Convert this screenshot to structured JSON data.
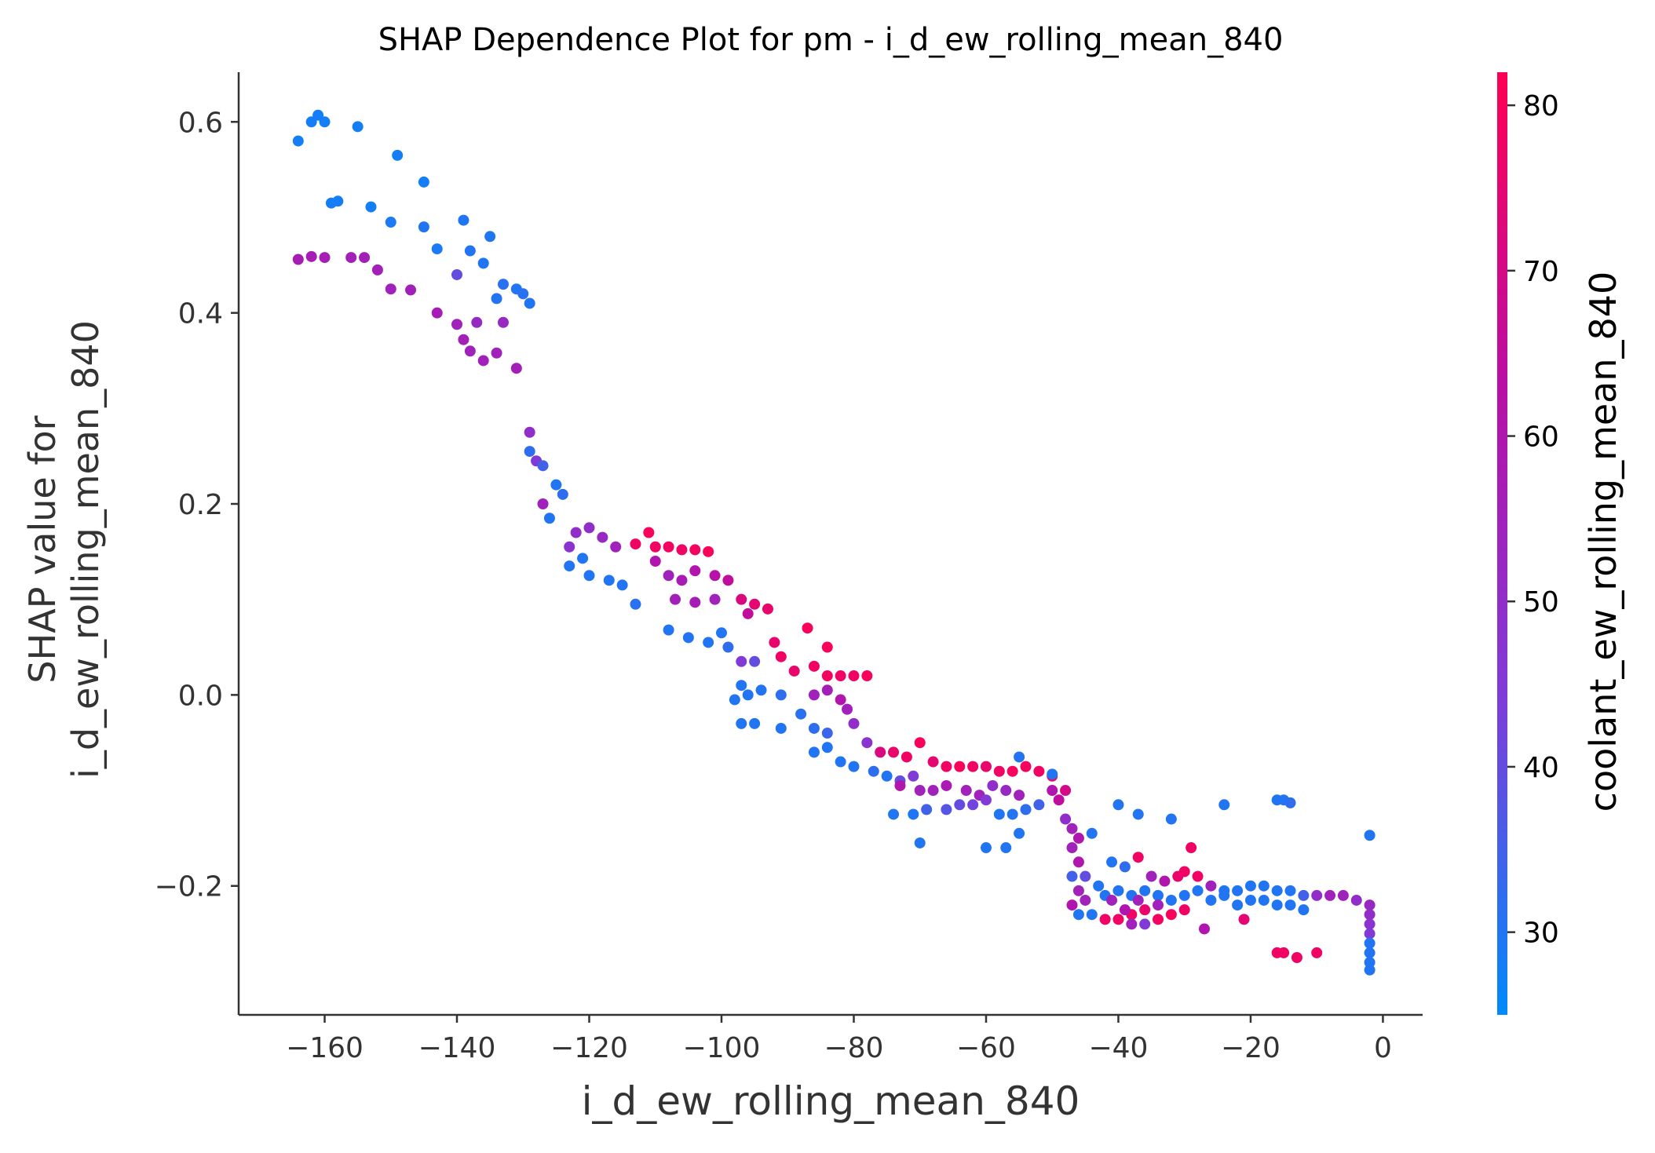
{
  "chart_data": {
    "type": "scatter",
    "title": "SHAP Dependence Plot for pm - i_d_ew_rolling_mean_840",
    "xlabel": "i_d_ew_rolling_mean_840",
    "ylabel_lines": [
      "SHAP value for",
      "i_d_ew_rolling_mean_840"
    ],
    "xlim": [
      -173,
      6
    ],
    "ylim": [
      -0.335,
      0.652
    ],
    "x_ticks": [
      -160,
      -140,
      -120,
      -100,
      -80,
      -60,
      -40,
      -20,
      0
    ],
    "x_tick_labels": [
      "−160",
      "−140",
      "−120",
      "−100",
      "−80",
      "−60",
      "−40",
      "−20",
      "0"
    ],
    "y_ticks": [
      -0.2,
      0.0,
      0.2,
      0.4,
      0.6
    ],
    "y_tick_labels": [
      "−0.2",
      "0.0",
      "0.2",
      "0.4",
      "0.6"
    ],
    "grid": false,
    "colorbar": {
      "label": "coolant_ew_rolling_mean_840",
      "range": [
        25,
        82
      ],
      "ticks": [
        30,
        40,
        50,
        60,
        70,
        80
      ],
      "tick_labels": [
        "30",
        "40",
        "50",
        "60",
        "70",
        "80"
      ],
      "colors": [
        "#008afb",
        "#7e3cd9",
        "#b90fa5",
        "#ff0052"
      ]
    },
    "point_color_key": "c",
    "points": [
      {
        "x": -164,
        "y": 0.58,
        "c": 28
      },
      {
        "x": -162,
        "y": 0.6,
        "c": 28
      },
      {
        "x": -161,
        "y": 0.607,
        "c": 28
      },
      {
        "x": -160,
        "y": 0.6,
        "c": 28
      },
      {
        "x": -155,
        "y": 0.595,
        "c": 28
      },
      {
        "x": -149,
        "y": 0.565,
        "c": 28
      },
      {
        "x": -145,
        "y": 0.537,
        "c": 28
      },
      {
        "x": -159,
        "y": 0.515,
        "c": 28
      },
      {
        "x": -158,
        "y": 0.517,
        "c": 28
      },
      {
        "x": -153,
        "y": 0.511,
        "c": 28
      },
      {
        "x": -150,
        "y": 0.495,
        "c": 29
      },
      {
        "x": -145,
        "y": 0.49,
        "c": 30
      },
      {
        "x": -143,
        "y": 0.467,
        "c": 29
      },
      {
        "x": -139,
        "y": 0.497,
        "c": 30
      },
      {
        "x": -135,
        "y": 0.48,
        "c": 30
      },
      {
        "x": -138,
        "y": 0.465,
        "c": 30
      },
      {
        "x": -136,
        "y": 0.452,
        "c": 30
      },
      {
        "x": -133,
        "y": 0.43,
        "c": 31
      },
      {
        "x": -131,
        "y": 0.425,
        "c": 30
      },
      {
        "x": -130,
        "y": 0.42,
        "c": 31
      },
      {
        "x": -129,
        "y": 0.41,
        "c": 30
      },
      {
        "x": -134,
        "y": 0.415,
        "c": 30
      },
      {
        "x": -140,
        "y": 0.44,
        "c": 40
      },
      {
        "x": -164,
        "y": 0.456,
        "c": 57
      },
      {
        "x": -162,
        "y": 0.459,
        "c": 57
      },
      {
        "x": -160,
        "y": 0.458,
        "c": 57
      },
      {
        "x": -156,
        "y": 0.458,
        "c": 56
      },
      {
        "x": -154,
        "y": 0.458,
        "c": 56
      },
      {
        "x": -152,
        "y": 0.445,
        "c": 56
      },
      {
        "x": -150,
        "y": 0.425,
        "c": 55
      },
      {
        "x": -147,
        "y": 0.424,
        "c": 56
      },
      {
        "x": -143,
        "y": 0.4,
        "c": 57
      },
      {
        "x": -140,
        "y": 0.388,
        "c": 55
      },
      {
        "x": -139,
        "y": 0.372,
        "c": 56
      },
      {
        "x": -137,
        "y": 0.39,
        "c": 52
      },
      {
        "x": -136,
        "y": 0.35,
        "c": 55
      },
      {
        "x": -134,
        "y": 0.358,
        "c": 55
      },
      {
        "x": -131,
        "y": 0.342,
        "c": 56
      },
      {
        "x": -133,
        "y": 0.39,
        "c": 52
      },
      {
        "x": -138,
        "y": 0.36,
        "c": 55
      },
      {
        "x": -129,
        "y": 0.275,
        "c": 50
      },
      {
        "x": -128,
        "y": 0.245,
        "c": 45
      },
      {
        "x": -129,
        "y": 0.255,
        "c": 32
      },
      {
        "x": -127,
        "y": 0.24,
        "c": 35
      },
      {
        "x": -125,
        "y": 0.22,
        "c": 30
      },
      {
        "x": -124,
        "y": 0.21,
        "c": 32
      },
      {
        "x": -126,
        "y": 0.185,
        "c": 30
      },
      {
        "x": -127,
        "y": 0.2,
        "c": 55
      },
      {
        "x": -123,
        "y": 0.155,
        "c": 48
      },
      {
        "x": -122,
        "y": 0.17,
        "c": 50
      },
      {
        "x": -120,
        "y": 0.175,
        "c": 50
      },
      {
        "x": -118,
        "y": 0.165,
        "c": 52
      },
      {
        "x": -116,
        "y": 0.155,
        "c": 55
      },
      {
        "x": -123,
        "y": 0.135,
        "c": 30
      },
      {
        "x": -121,
        "y": 0.143,
        "c": 30
      },
      {
        "x": -120,
        "y": 0.125,
        "c": 30
      },
      {
        "x": -117,
        "y": 0.12,
        "c": 30
      },
      {
        "x": -115,
        "y": 0.115,
        "c": 30
      },
      {
        "x": -113,
        "y": 0.095,
        "c": 31
      },
      {
        "x": -113,
        "y": 0.158,
        "c": 78
      },
      {
        "x": -111,
        "y": 0.17,
        "c": 80
      },
      {
        "x": -110,
        "y": 0.155,
        "c": 78
      },
      {
        "x": -108,
        "y": 0.155,
        "c": 79
      },
      {
        "x": -106,
        "y": 0.152,
        "c": 78
      },
      {
        "x": -104,
        "y": 0.152,
        "c": 79
      },
      {
        "x": -102,
        "y": 0.15,
        "c": 80
      },
      {
        "x": -110,
        "y": 0.14,
        "c": 60
      },
      {
        "x": -108,
        "y": 0.125,
        "c": 55
      },
      {
        "x": -106,
        "y": 0.12,
        "c": 58
      },
      {
        "x": -104,
        "y": 0.13,
        "c": 60
      },
      {
        "x": -101,
        "y": 0.125,
        "c": 62
      },
      {
        "x": -99,
        "y": 0.12,
        "c": 65
      },
      {
        "x": -107,
        "y": 0.1,
        "c": 56
      },
      {
        "x": -104,
        "y": 0.097,
        "c": 57
      },
      {
        "x": -101,
        "y": 0.1,
        "c": 55
      },
      {
        "x": -97,
        "y": 0.1,
        "c": 72
      },
      {
        "x": -95,
        "y": 0.095,
        "c": 75
      },
      {
        "x": -93,
        "y": 0.09,
        "c": 76
      },
      {
        "x": -96,
        "y": 0.085,
        "c": 65
      },
      {
        "x": -108,
        "y": 0.068,
        "c": 30
      },
      {
        "x": -105,
        "y": 0.06,
        "c": 30
      },
      {
        "x": -102,
        "y": 0.055,
        "c": 30
      },
      {
        "x": -100,
        "y": 0.065,
        "c": 30
      },
      {
        "x": -99,
        "y": 0.05,
        "c": 32
      },
      {
        "x": -97,
        "y": 0.035,
        "c": 45
      },
      {
        "x": -95,
        "y": 0.035,
        "c": 40
      },
      {
        "x": -92,
        "y": 0.055,
        "c": 76
      },
      {
        "x": -91,
        "y": 0.04,
        "c": 78
      },
      {
        "x": -89,
        "y": 0.025,
        "c": 76
      },
      {
        "x": -87,
        "y": 0.07,
        "c": 80
      },
      {
        "x": -84,
        "y": 0.05,
        "c": 80
      },
      {
        "x": -86,
        "y": 0.03,
        "c": 78
      },
      {
        "x": -84,
        "y": 0.02,
        "c": 79
      },
      {
        "x": -82,
        "y": 0.02,
        "c": 78
      },
      {
        "x": -80,
        "y": 0.02,
        "c": 78
      },
      {
        "x": -78,
        "y": 0.02,
        "c": 80
      },
      {
        "x": -97,
        "y": 0.01,
        "c": 30
      },
      {
        "x": -96,
        "y": 0.0,
        "c": 30
      },
      {
        "x": -94,
        "y": 0.005,
        "c": 30
      },
      {
        "x": -91,
        "y": 0.0,
        "c": 32
      },
      {
        "x": -98,
        "y": -0.005,
        "c": 30
      },
      {
        "x": -97,
        "y": -0.03,
        "c": 30
      },
      {
        "x": -95,
        "y": -0.03,
        "c": 30
      },
      {
        "x": -91,
        "y": -0.035,
        "c": 30
      },
      {
        "x": -88,
        "y": -0.02,
        "c": 31
      },
      {
        "x": -86,
        "y": -0.035,
        "c": 32
      },
      {
        "x": -84,
        "y": -0.04,
        "c": 34
      },
      {
        "x": -86,
        "y": 0.0,
        "c": 55
      },
      {
        "x": -84,
        "y": 0.005,
        "c": 56
      },
      {
        "x": -82,
        "y": -0.005,
        "c": 60
      },
      {
        "x": -81,
        "y": -0.015,
        "c": 55
      },
      {
        "x": -80,
        "y": -0.03,
        "c": 50
      },
      {
        "x": -78,
        "y": -0.05,
        "c": 48
      },
      {
        "x": -86,
        "y": -0.06,
        "c": 30
      },
      {
        "x": -84,
        "y": -0.055,
        "c": 30
      },
      {
        "x": -82,
        "y": -0.07,
        "c": 30
      },
      {
        "x": -80,
        "y": -0.075,
        "c": 30
      },
      {
        "x": -77,
        "y": -0.08,
        "c": 32
      },
      {
        "x": -75,
        "y": -0.085,
        "c": 30
      },
      {
        "x": -73,
        "y": -0.09,
        "c": 40
      },
      {
        "x": -71,
        "y": -0.085,
        "c": 45
      },
      {
        "x": -76,
        "y": -0.06,
        "c": 72
      },
      {
        "x": -74,
        "y": -0.06,
        "c": 76
      },
      {
        "x": -72,
        "y": -0.065,
        "c": 78
      },
      {
        "x": -70,
        "y": -0.05,
        "c": 80
      },
      {
        "x": -68,
        "y": -0.07,
        "c": 75
      },
      {
        "x": -66,
        "y": -0.075,
        "c": 78
      },
      {
        "x": -64,
        "y": -0.075,
        "c": 80
      },
      {
        "x": -62,
        "y": -0.075,
        "c": 78
      },
      {
        "x": -60,
        "y": -0.075,
        "c": 76
      },
      {
        "x": -58,
        "y": -0.08,
        "c": 78
      },
      {
        "x": -56,
        "y": -0.08,
        "c": 80
      },
      {
        "x": -54,
        "y": -0.075,
        "c": 79
      },
      {
        "x": -52,
        "y": -0.08,
        "c": 78
      },
      {
        "x": -50,
        "y": -0.085,
        "c": 78
      },
      {
        "x": -73,
        "y": -0.095,
        "c": 60
      },
      {
        "x": -70,
        "y": -0.1,
        "c": 55
      },
      {
        "x": -68,
        "y": -0.1,
        "c": 55
      },
      {
        "x": -66,
        "y": -0.095,
        "c": 58
      },
      {
        "x": -63,
        "y": -0.1,
        "c": 55
      },
      {
        "x": -61,
        "y": -0.105,
        "c": 55
      },
      {
        "x": -59,
        "y": -0.095,
        "c": 50
      },
      {
        "x": -57,
        "y": -0.1,
        "c": 52
      },
      {
        "x": -55,
        "y": -0.105,
        "c": 55
      },
      {
        "x": -74,
        "y": -0.125,
        "c": 30
      },
      {
        "x": -71,
        "y": -0.125,
        "c": 30
      },
      {
        "x": -69,
        "y": -0.12,
        "c": 35
      },
      {
        "x": -66,
        "y": -0.12,
        "c": 38
      },
      {
        "x": -64,
        "y": -0.115,
        "c": 40
      },
      {
        "x": -62,
        "y": -0.115,
        "c": 42
      },
      {
        "x": -60,
        "y": -0.11,
        "c": 45
      },
      {
        "x": -58,
        "y": -0.125,
        "c": 30
      },
      {
        "x": -56,
        "y": -0.125,
        "c": 30
      },
      {
        "x": -54,
        "y": -0.12,
        "c": 32
      },
      {
        "x": -52,
        "y": -0.115,
        "c": 35
      },
      {
        "x": -50,
        "y": -0.1,
        "c": 60
      },
      {
        "x": -49,
        "y": -0.11,
        "c": 65
      },
      {
        "x": -48,
        "y": -0.1,
        "c": 70
      },
      {
        "x": -55,
        "y": -0.065,
        "c": 30
      },
      {
        "x": -50,
        "y": -0.083,
        "c": 30
      },
      {
        "x": -48,
        "y": -0.13,
        "c": 50
      },
      {
        "x": -47,
        "y": -0.14,
        "c": 55
      },
      {
        "x": -46,
        "y": -0.15,
        "c": 60
      },
      {
        "x": -70,
        "y": -0.155,
        "c": 30
      },
      {
        "x": -60,
        "y": -0.16,
        "c": 30
      },
      {
        "x": -57,
        "y": -0.16,
        "c": 30
      },
      {
        "x": -55,
        "y": -0.145,
        "c": 30
      },
      {
        "x": -44,
        "y": -0.145,
        "c": 30
      },
      {
        "x": -47,
        "y": -0.16,
        "c": 55
      },
      {
        "x": -46,
        "y": -0.175,
        "c": 60
      },
      {
        "x": -45,
        "y": -0.19,
        "c": 40
      },
      {
        "x": -47,
        "y": -0.19,
        "c": 35
      },
      {
        "x": -46,
        "y": -0.205,
        "c": 55
      },
      {
        "x": -47,
        "y": -0.22,
        "c": 60
      },
      {
        "x": -46,
        "y": -0.23,
        "c": 30
      },
      {
        "x": -44,
        "y": -0.23,
        "c": 30
      },
      {
        "x": -45,
        "y": -0.215,
        "c": 55
      },
      {
        "x": -43,
        "y": -0.2,
        "c": 30
      },
      {
        "x": -41,
        "y": -0.175,
        "c": 30
      },
      {
        "x": -39,
        "y": -0.18,
        "c": 32
      },
      {
        "x": -37,
        "y": -0.17,
        "c": 78
      },
      {
        "x": -35,
        "y": -0.19,
        "c": 55
      },
      {
        "x": -33,
        "y": -0.195,
        "c": 60
      },
      {
        "x": -31,
        "y": -0.19,
        "c": 76
      },
      {
        "x": -29,
        "y": -0.16,
        "c": 78
      },
      {
        "x": -30,
        "y": -0.185,
        "c": 78
      },
      {
        "x": -28,
        "y": -0.19,
        "c": 78
      },
      {
        "x": -26,
        "y": -0.2,
        "c": 55
      },
      {
        "x": -24,
        "y": -0.205,
        "c": 30
      },
      {
        "x": -22,
        "y": -0.205,
        "c": 30
      },
      {
        "x": -20,
        "y": -0.2,
        "c": 30
      },
      {
        "x": -18,
        "y": -0.2,
        "c": 30
      },
      {
        "x": -16,
        "y": -0.205,
        "c": 30
      },
      {
        "x": -14,
        "y": -0.205,
        "c": 30
      },
      {
        "x": -12,
        "y": -0.21,
        "c": 35
      },
      {
        "x": -10,
        "y": -0.21,
        "c": 50
      },
      {
        "x": -8,
        "y": -0.21,
        "c": 55
      },
      {
        "x": -6,
        "y": -0.21,
        "c": 55
      },
      {
        "x": -4,
        "y": -0.215,
        "c": 50
      },
      {
        "x": -42,
        "y": -0.21,
        "c": 30
      },
      {
        "x": -40,
        "y": -0.205,
        "c": 30
      },
      {
        "x": -38,
        "y": -0.21,
        "c": 30
      },
      {
        "x": -36,
        "y": -0.205,
        "c": 30
      },
      {
        "x": -34,
        "y": -0.21,
        "c": 30
      },
      {
        "x": -32,
        "y": -0.215,
        "c": 30
      },
      {
        "x": -30,
        "y": -0.21,
        "c": 30
      },
      {
        "x": -28,
        "y": -0.205,
        "c": 30
      },
      {
        "x": -26,
        "y": -0.215,
        "c": 30
      },
      {
        "x": -24,
        "y": -0.21,
        "c": 30
      },
      {
        "x": -22,
        "y": -0.22,
        "c": 30
      },
      {
        "x": -20,
        "y": -0.215,
        "c": 30
      },
      {
        "x": -18,
        "y": -0.215,
        "c": 30
      },
      {
        "x": -16,
        "y": -0.22,
        "c": 30
      },
      {
        "x": -14,
        "y": -0.22,
        "c": 30
      },
      {
        "x": -12,
        "y": -0.225,
        "c": 30
      },
      {
        "x": -42,
        "y": -0.235,
        "c": 78
      },
      {
        "x": -40,
        "y": -0.235,
        "c": 78
      },
      {
        "x": -38,
        "y": -0.23,
        "c": 78
      },
      {
        "x": -36,
        "y": -0.225,
        "c": 76
      },
      {
        "x": -34,
        "y": -0.235,
        "c": 79
      },
      {
        "x": -32,
        "y": -0.23,
        "c": 80
      },
      {
        "x": -30,
        "y": -0.225,
        "c": 78
      },
      {
        "x": -38,
        "y": -0.24,
        "c": 55
      },
      {
        "x": -34,
        "y": -0.22,
        "c": 55
      },
      {
        "x": -27,
        "y": -0.245,
        "c": 60
      },
      {
        "x": -21,
        "y": -0.235,
        "c": 75
      },
      {
        "x": -41,
        "y": -0.215,
        "c": 55
      },
      {
        "x": -39,
        "y": -0.225,
        "c": 60
      },
      {
        "x": -37,
        "y": -0.215,
        "c": 55
      },
      {
        "x": -36,
        "y": -0.24,
        "c": 45
      },
      {
        "x": -40,
        "y": -0.115,
        "c": 30
      },
      {
        "x": -37,
        "y": -0.125,
        "c": 30
      },
      {
        "x": -32,
        "y": -0.13,
        "c": 30
      },
      {
        "x": -24,
        "y": -0.115,
        "c": 30
      },
      {
        "x": -16,
        "y": -0.11,
        "c": 30
      },
      {
        "x": -15,
        "y": -0.11,
        "c": 30
      },
      {
        "x": -14,
        "y": -0.113,
        "c": 32
      },
      {
        "x": -2,
        "y": -0.147,
        "c": 30
      },
      {
        "x": -16,
        "y": -0.27,
        "c": 78
      },
      {
        "x": -15,
        "y": -0.27,
        "c": 78
      },
      {
        "x": -13,
        "y": -0.275,
        "c": 78
      },
      {
        "x": -10,
        "y": -0.27,
        "c": 78
      },
      {
        "x": -2,
        "y": -0.22,
        "c": 52
      },
      {
        "x": -2,
        "y": -0.23,
        "c": 50
      },
      {
        "x": -2,
        "y": -0.24,
        "c": 48
      },
      {
        "x": -2,
        "y": -0.25,
        "c": 45
      },
      {
        "x": -2,
        "y": -0.26,
        "c": 30
      },
      {
        "x": -2,
        "y": -0.27,
        "c": 30
      },
      {
        "x": -2,
        "y": -0.28,
        "c": 30
      },
      {
        "x": -2,
        "y": -0.288,
        "c": 30
      }
    ]
  }
}
